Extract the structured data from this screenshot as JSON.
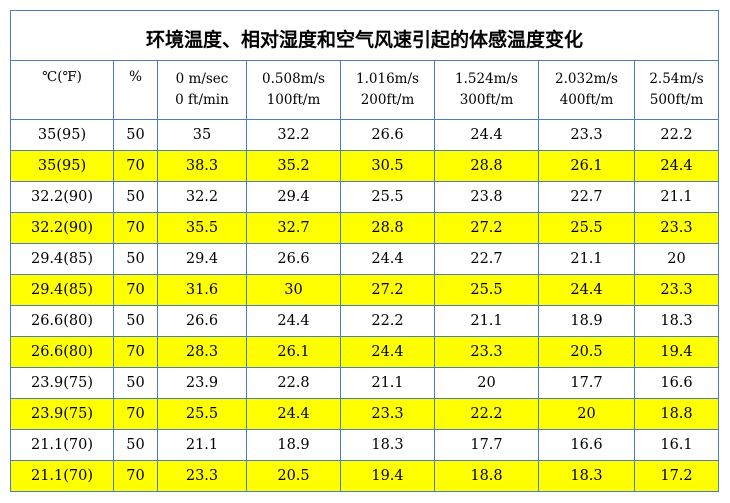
{
  "title": "环境温度、相对湿度和空气风速引起的体感温度变化",
  "headers": [
    {
      "line1": "℃(℉)",
      "line2": ""
    },
    {
      "line1": "%",
      "line2": ""
    },
    {
      "line1": "0 m/sec",
      "line2": "0 ft/min"
    },
    {
      "line1": "0.508m/s",
      "line2": "100ft/m"
    },
    {
      "line1": "1.016m/s",
      "line2": "200ft/m"
    },
    {
      "line1": "1.524m/s",
      "line2": "300ft/m"
    },
    {
      "line1": "2.032m/s",
      "line2": "400ft/m"
    },
    {
      "line1": "2.54m/s",
      "line2": "500ft/m"
    }
  ],
  "highlight_color": "#ffff00",
  "border_color": "#4a7ebb",
  "rows": [
    {
      "highlight": false,
      "cells": [
        "35(95)",
        "50",
        "35",
        "32.2",
        "26.6",
        "24.4",
        "23.3",
        "22.2"
      ]
    },
    {
      "highlight": true,
      "cells": [
        "35(95)",
        "70",
        "38.3",
        "35.2",
        "30.5",
        "28.8",
        "26.1",
        "24.4"
      ]
    },
    {
      "highlight": false,
      "cells": [
        "32.2(90)",
        "50",
        "32.2",
        "29.4",
        "25.5",
        "23.8",
        "22.7",
        "21.1"
      ]
    },
    {
      "highlight": true,
      "cells": [
        "32.2(90)",
        "70",
        "35.5",
        "32.7",
        "28.8",
        "27.2",
        "25.5",
        "23.3"
      ]
    },
    {
      "highlight": false,
      "cells": [
        "29.4(85)",
        "50",
        "29.4",
        "26.6",
        "24.4",
        "22.7",
        "21.1",
        "20"
      ]
    },
    {
      "highlight": true,
      "cells": [
        "29.4(85)",
        "70",
        "31.6",
        "30",
        "27.2",
        "25.5",
        "24.4",
        "23.3"
      ]
    },
    {
      "highlight": false,
      "cells": [
        "26.6(80)",
        "50",
        "26.6",
        "24.4",
        "22.2",
        "21.1",
        "18.9",
        "18.3"
      ]
    },
    {
      "highlight": true,
      "cells": [
        "26.6(80)",
        "70",
        "28.3",
        "26.1",
        "24.4",
        "23.3",
        "20.5",
        "19.4"
      ]
    },
    {
      "highlight": false,
      "cells": [
        "23.9(75)",
        "50",
        "23.9",
        "22.8",
        "21.1",
        "20",
        "17.7",
        "16.6"
      ]
    },
    {
      "highlight": true,
      "cells": [
        "23.9(75)",
        "70",
        "25.5",
        "24.4",
        "23.3",
        "22.2",
        "20",
        "18.8"
      ]
    },
    {
      "highlight": false,
      "cells": [
        "21.1(70)",
        "50",
        "21.1",
        "18.9",
        "18.3",
        "17.7",
        "16.6",
        "16.1"
      ]
    },
    {
      "highlight": true,
      "cells": [
        "21.1(70)",
        "70",
        "23.3",
        "20.5",
        "19.4",
        "18.8",
        "18.3",
        "17.2"
      ]
    }
  ]
}
